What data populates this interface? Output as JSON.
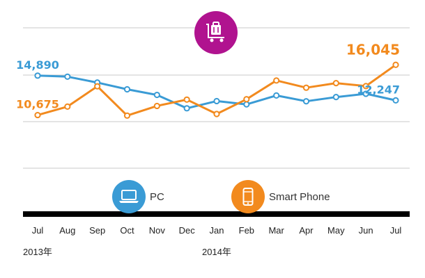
{
  "chart_data": {
    "type": "line",
    "categories": [
      "Jul",
      "Aug",
      "Sep",
      "Oct",
      "Nov",
      "Dec",
      "Jan",
      "Feb",
      "Mar",
      "Apr",
      "May",
      "Jun",
      "Jul"
    ],
    "year_labels": [
      {
        "label": "2013年",
        "category_index": 0
      },
      {
        "label": "2014年",
        "category_index": 6
      }
    ],
    "series": [
      {
        "name": "PC",
        "color": "#3a9bd5",
        "icon": "laptop-icon",
        "values": [
          14890,
          14780,
          14150,
          13430,
          12830,
          11400,
          12170,
          11820,
          12770,
          12150,
          12600,
          12950,
          12247
        ]
      },
      {
        "name": "Smart Phone",
        "color": "#f28a1e",
        "icon": "smartphone-icon",
        "values": [
          10675,
          11580,
          13750,
          10620,
          11650,
          12330,
          10790,
          12370,
          14370,
          13600,
          14090,
          13770,
          16045
        ]
      }
    ],
    "annotations": [
      {
        "series": 0,
        "index": 0,
        "text": "14,890"
      },
      {
        "series": 1,
        "index": 0,
        "text": "10,675"
      },
      {
        "series": 1,
        "index": 12,
        "text": "16,045"
      },
      {
        "series": 0,
        "index": 12,
        "text": "12,247"
      }
    ],
    "title_icon": "luggage-cart-icon",
    "title_icon_color": "#b0138f",
    "grid": true,
    "legend": "bottom",
    "ylim": [
      5000,
      20000
    ]
  }
}
